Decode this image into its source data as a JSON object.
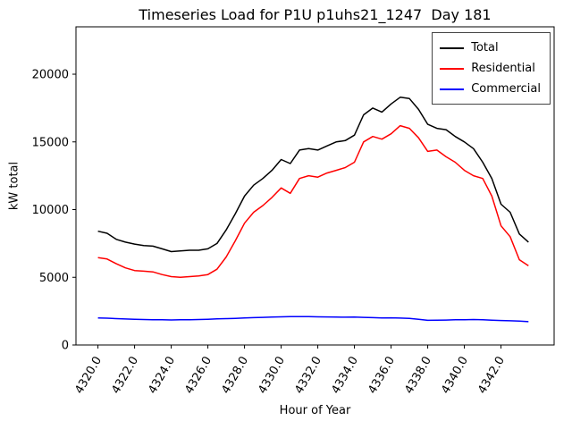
{
  "chart_data": {
    "type": "line",
    "title": "Timeseries Load for P1U p1uhs21_1247  Day 181",
    "xlabel": "Hour of Year",
    "ylabel": "kW total",
    "xlim": [
      4318.8,
      4344.9
    ],
    "ylim": [
      0,
      23500
    ],
    "grid": false,
    "legend_position": "upper right",
    "x_ticks": [
      4320,
      4322,
      4324,
      4326,
      4328,
      4330,
      4332,
      4334,
      4336,
      4338,
      4340,
      4342
    ],
    "x_tick_labels": [
      "4320.0",
      "4322.0",
      "4324.0",
      "4326.0",
      "4328.0",
      "4330.0",
      "4332.0",
      "4334.0",
      "4336.0",
      "4338.0",
      "4340.0",
      "4342.0"
    ],
    "y_ticks": [
      0,
      5000,
      10000,
      15000,
      20000
    ],
    "x": [
      4320.0,
      4320.5,
      4321.0,
      4321.5,
      4322.0,
      4322.5,
      4323.0,
      4323.5,
      4324.0,
      4324.5,
      4325.0,
      4325.5,
      4326.0,
      4326.5,
      4327.0,
      4327.5,
      4328.0,
      4328.5,
      4329.0,
      4329.5,
      4330.0,
      4330.5,
      4331.0,
      4331.5,
      4332.0,
      4332.5,
      4333.0,
      4333.5,
      4334.0,
      4334.5,
      4335.0,
      4335.5,
      4336.0,
      4336.5,
      4337.0,
      4337.5,
      4338.0,
      4338.5,
      4339.0,
      4339.5,
      4340.0,
      4340.5,
      4341.0,
      4341.5,
      4342.0,
      4342.5,
      4343.0,
      4343.5
    ],
    "series": [
      {
        "name": "Total",
        "color": "#000000",
        "values": [
          8400,
          8250,
          7800,
          7600,
          7450,
          7350,
          7300,
          7100,
          6900,
          6950,
          7000,
          7000,
          7100,
          7500,
          8500,
          9700,
          11000,
          11800,
          12300,
          12900,
          13700,
          13400,
          14400,
          14500,
          14400,
          14700,
          15000,
          15100,
          15500,
          17000,
          17500,
          17200,
          17800,
          18300,
          18200,
          17400,
          16300,
          16000,
          15900,
          15400,
          15000,
          14500,
          13500,
          12300,
          10400,
          9800,
          8200,
          7600
        ]
      },
      {
        "name": "Residential",
        "color": "#ff0000",
        "values": [
          6450,
          6350,
          6000,
          5700,
          5500,
          5450,
          5400,
          5200,
          5050,
          5000,
          5050,
          5100,
          5200,
          5600,
          6500,
          7700,
          9000,
          9800,
          10300,
          10900,
          11600,
          11200,
          12300,
          12500,
          12400,
          12700,
          12900,
          13100,
          13500,
          15000,
          15400,
          15200,
          15600,
          16200,
          16000,
          15300,
          14300,
          14400,
          13900,
          13500,
          12900,
          12500,
          12300,
          11000,
          8800,
          8000,
          6300,
          5850
        ]
      },
      {
        "name": "Commercial",
        "color": "#0000ff",
        "values": [
          2000,
          1980,
          1950,
          1920,
          1900,
          1880,
          1870,
          1860,
          1850,
          1860,
          1870,
          1880,
          1900,
          1930,
          1950,
          1970,
          2000,
          2020,
          2040,
          2060,
          2080,
          2100,
          2100,
          2090,
          2080,
          2070,
          2060,
          2050,
          2060,
          2040,
          2020,
          2000,
          2010,
          1990,
          1960,
          1900,
          1820,
          1830,
          1840,
          1860,
          1870,
          1880,
          1860,
          1830,
          1810,
          1790,
          1760,
          1720
        ]
      }
    ]
  }
}
